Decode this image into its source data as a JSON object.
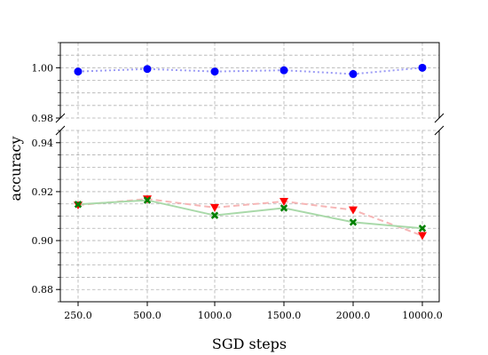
{
  "chart_data": {
    "type": "line",
    "xlabel": "SGD steps",
    "ylabel": "accuracy",
    "categories": [
      "250.0",
      "500.0",
      "1000.0",
      "1500.0",
      "2000.0",
      "10000.0"
    ],
    "broken_y_axis": true,
    "upper_panel": {
      "ylim": [
        0.98,
        1.01
      ],
      "yticks": [
        "0.98",
        "1.00"
      ]
    },
    "lower_panel": {
      "ylim": [
        0.875,
        0.945
      ],
      "yticks": [
        "0.88",
        "0.90",
        "0.92",
        "0.94"
      ]
    },
    "grid": true,
    "series": [
      {
        "marker": "circle",
        "color": "#0000ff",
        "line_color": "#9c9cf5",
        "line_style": "dotted",
        "panel": "upper",
        "values": [
          0.9985,
          0.9995,
          0.9985,
          0.999,
          0.9975,
          1.0
        ]
      },
      {
        "marker": "triangle-down",
        "color": "#ff0000",
        "line_color": "#f6b6b6",
        "line_style": "dashed",
        "panel": "lower",
        "values": [
          0.9145,
          0.917,
          0.9135,
          0.916,
          0.9125,
          0.902
        ]
      },
      {
        "marker": "x-filled",
        "color": "#008000",
        "line_color": "#a9d9a9",
        "line_style": "solid",
        "panel": "lower",
        "values": [
          0.9148,
          0.9165,
          0.9103,
          0.9133,
          0.9075,
          0.905
        ]
      }
    ]
  }
}
